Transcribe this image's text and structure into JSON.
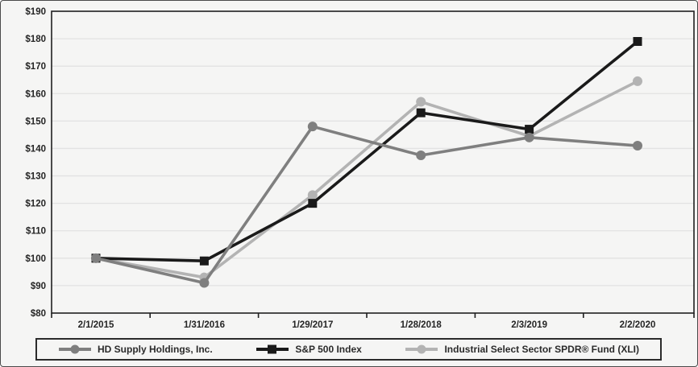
{
  "chart_data": {
    "type": "line",
    "title": "",
    "xlabel": "",
    "ylabel": "",
    "categories": [
      "2/1/2015",
      "1/31/2016",
      "1/29/2017",
      "1/28/2018",
      "2/3/2019",
      "2/2/2020"
    ],
    "series": [
      {
        "key": "hd-supply-holdings",
        "name": "HD Supply Holdings, Inc.",
        "marker": "circle",
        "color": "#7f7f7f",
        "values": [
          100,
          91,
          148,
          137.5,
          144,
          141
        ]
      },
      {
        "key": "sp-500-index",
        "name": "S&P 500 Index",
        "marker": "square",
        "color": "#1a1a1a",
        "values": [
          100,
          99,
          120,
          153,
          147,
          179
        ]
      },
      {
        "key": "industrial-select-sector-spdr-xli",
        "name": "Industrial Select Sector SPDR® Fund (XLI)",
        "marker": "circle",
        "color": "#b3b3b3",
        "values": [
          100,
          93,
          123,
          157,
          144.5,
          164.5
        ]
      }
    ],
    "ylim": [
      80,
      190
    ],
    "ytick_step": 10,
    "ytick_labels": [
      "$80",
      "$90",
      "$100",
      "$110",
      "$120",
      "$130",
      "$140",
      "$150",
      "$160",
      "$170",
      "$180",
      "$190"
    ],
    "grid": "horizontal",
    "legend_position": "bottom",
    "colors": {
      "gridline": "#e2e2e2",
      "frame": "#1f1f1f",
      "background": "#f5f5f4",
      "text": "#252525"
    }
  }
}
